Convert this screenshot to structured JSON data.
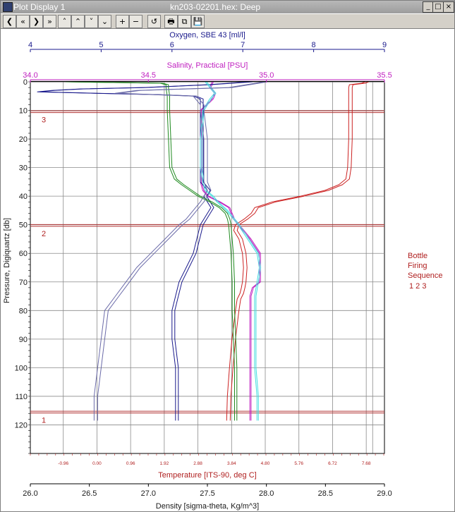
{
  "window": {
    "title": "Plot Display 1",
    "document": "kn203-02201.hex: Deep"
  },
  "window_controls": [
    "_",
    "□",
    "×"
  ],
  "toolbar": {
    "buttons": [
      {
        "name": "first-icon",
        "glyph": "❮"
      },
      {
        "name": "fast-back-icon",
        "glyph": "«"
      },
      {
        "name": "forward-icon",
        "glyph": "❯"
      },
      {
        "name": "fast-forward-icon",
        "glyph": "»"
      },
      {
        "name": "up-icon",
        "glyph": "˄"
      },
      {
        "name": "fast-up-icon",
        "glyph": "⌃"
      },
      {
        "name": "down-icon",
        "glyph": "˅"
      },
      {
        "name": "fast-down-icon",
        "glyph": "⌄"
      },
      {
        "name": "zoom-in-icon",
        "glyph": "+"
      },
      {
        "name": "zoom-out-icon",
        "glyph": "−"
      },
      {
        "name": "undo-icon",
        "glyph": "↺"
      },
      {
        "name": "print-icon",
        "glyph": "🖶"
      },
      {
        "name": "copy-icon",
        "glyph": "⧉"
      },
      {
        "name": "save-icon",
        "glyph": "💾"
      }
    ]
  },
  "chart_data": {
    "type": "line",
    "y_axis": {
      "label": "Pressure, Digiquartz [db]",
      "range": [
        0,
        130
      ],
      "ticks": [
        0,
        10,
        20,
        30,
        40,
        50,
        60,
        70,
        80,
        90,
        100,
        110,
        120
      ],
      "reversed": true
    },
    "axes": {
      "oxygen": {
        "label": "Oxygen, SBE 43 [ml/l]",
        "range": [
          4,
          9
        ],
        "ticks": [
          "4",
          "5",
          "6",
          "7",
          "8",
          "9"
        ],
        "color": "#1a1a8c"
      },
      "salinity": {
        "label": "Salinity, Practical [PSU]",
        "range": [
          34.0,
          35.5
        ],
        "ticks": [
          "34.0",
          "34.5",
          "35.0",
          "35.5"
        ],
        "color": "#c020c0"
      },
      "temperature": {
        "label": "Temperature [ITS-90, deg C]",
        "range": [
          -1.9,
          8.2
        ],
        "ticks": [
          "-0.96",
          "0.00",
          "0.96",
          "1.92",
          "2.88",
          "3.84",
          "4.80",
          "5.76",
          "6.72",
          "7.68"
        ],
        "color": "#b02020"
      },
      "density": {
        "label": "Density [sigma-theta, Kg/m^3]",
        "range": [
          26.0,
          29.0
        ],
        "ticks": [
          "26.0",
          "26.5",
          "27.0",
          "27.5",
          "28.0",
          "28.5",
          "29.0"
        ],
        "color": "#1a1a1a"
      }
    },
    "bottles": [
      {
        "number": "3",
        "pressure": 10.5
      },
      {
        "number": "2",
        "pressure": 50.3
      },
      {
        "number": "1",
        "pressure": 115.6
      }
    ],
    "legend": {
      "title": "Bottle Firing Sequence",
      "lines": [
        "Bottle",
        "Firing",
        "Sequence"
      ],
      "numbers": "1  2  3",
      "position": "right"
    },
    "series": [
      {
        "axis": "temperature",
        "color": "#cc2222",
        "offset": 0.1,
        "p": [
          0,
          0.5,
          1,
          2,
          5,
          10,
          20,
          30,
          34,
          36,
          38,
          40,
          42,
          44,
          46,
          48,
          50,
          52,
          55,
          60,
          65,
          70,
          72,
          74,
          76,
          80,
          90,
          100,
          110,
          118.5
        ],
        "v": [
          7.65,
          7.55,
          7.2,
          7.18,
          7.18,
          7.18,
          7.18,
          7.15,
          7.1,
          6.9,
          6.5,
          5.8,
          5.0,
          4.5,
          4.4,
          4.2,
          3.95,
          3.9,
          4.05,
          4.15,
          4.18,
          4.15,
          4.12,
          4.08,
          4.0,
          3.95,
          3.85,
          3.78,
          3.72,
          3.7
        ]
      },
      {
        "axis": "salinity",
        "color": "#c020c0",
        "offset": 0.005,
        "p": [
          0,
          2,
          3,
          4,
          6,
          10,
          20,
          30,
          35,
          38,
          40,
          42,
          44,
          46,
          48,
          50,
          55,
          60,
          65,
          70,
          72,
          75,
          80,
          90,
          100,
          110,
          118.5
        ],
        "v": [
          34.77,
          34.76,
          34.77,
          34.78,
          34.77,
          34.72,
          34.72,
          34.72,
          34.72,
          34.73,
          34.75,
          34.8,
          34.84,
          34.85,
          34.86,
          34.88,
          34.93,
          34.97,
          34.97,
          34.97,
          34.94,
          34.93,
          34.93,
          34.93,
          34.93,
          34.93,
          34.93
        ]
      },
      {
        "axis": "oxygen",
        "color": "#1a1a8c",
        "offset": 0.04,
        "p": [
          0,
          1,
          2,
          2.5,
          3,
          3.5,
          4,
          4.5,
          5,
          6,
          8,
          10,
          20,
          30,
          35,
          38,
          40,
          42,
          44,
          46,
          48,
          50,
          55,
          60,
          65,
          70,
          75,
          80,
          90,
          100,
          110,
          118.5
        ],
        "v": [
          7.1,
          6.5,
          5.6,
          4.7,
          4.3,
          4.1,
          4.9,
          5.8,
          6.3,
          6.4,
          6.4,
          6.4,
          6.4,
          6.4,
          6.4,
          6.5,
          6.45,
          6.5,
          6.55,
          6.5,
          6.45,
          6.4,
          6.35,
          6.3,
          6.2,
          6.1,
          6.05,
          6.0,
          6.0,
          6.05,
          6.05,
          6.05
        ]
      },
      {
        "axis": "density",
        "color": "#1f8a1f",
        "offset": 0.02,
        "p": [
          0,
          0.5,
          1,
          2,
          5,
          10,
          20,
          30,
          34,
          36,
          38,
          40,
          42,
          44,
          46,
          48,
          50,
          55,
          60,
          70,
          80,
          90,
          100,
          110,
          118.5
        ],
        "v": [
          26.3,
          27.1,
          27.15,
          27.15,
          27.16,
          27.16,
          27.17,
          27.18,
          27.22,
          27.28,
          27.35,
          27.42,
          27.52,
          27.6,
          27.65,
          27.67,
          27.68,
          27.69,
          27.7,
          27.71,
          27.71,
          27.72,
          27.73,
          27.73,
          27.73
        ]
      },
      {
        "axis": "salinity",
        "color": "#44dde0",
        "offset": 0.006,
        "p": [
          0,
          2,
          4,
          6,
          10,
          20,
          30,
          35,
          38,
          40,
          42,
          45,
          48,
          50,
          55,
          60,
          65,
          70,
          75,
          80,
          90,
          100,
          110,
          118.5
        ],
        "v": [
          34.74,
          34.76,
          34.78,
          34.76,
          34.73,
          34.72,
          34.72,
          34.73,
          34.74,
          34.77,
          34.79,
          34.83,
          34.86,
          34.88,
          34.92,
          34.96,
          34.97,
          34.96,
          34.95,
          34.95,
          34.95,
          34.95,
          34.96,
          34.96
        ]
      },
      {
        "axis": "oxygen",
        "color": "#6a6aa8",
        "offset": 0.05,
        "p": [
          0,
          2,
          3,
          4,
          5,
          8,
          10,
          20,
          30,
          35,
          38,
          40,
          42,
          45,
          48,
          50,
          55,
          60,
          65,
          70,
          75,
          80,
          90,
          100,
          110,
          118.5
        ],
        "v": [
          7.3,
          6.8,
          5.5,
          5.2,
          6.3,
          6.4,
          6.4,
          6.45,
          6.45,
          6.45,
          6.5,
          6.45,
          6.4,
          6.3,
          6.2,
          6.1,
          5.9,
          5.7,
          5.5,
          5.35,
          5.2,
          5.05,
          5.0,
          4.95,
          4.9,
          4.9
        ]
      }
    ]
  }
}
